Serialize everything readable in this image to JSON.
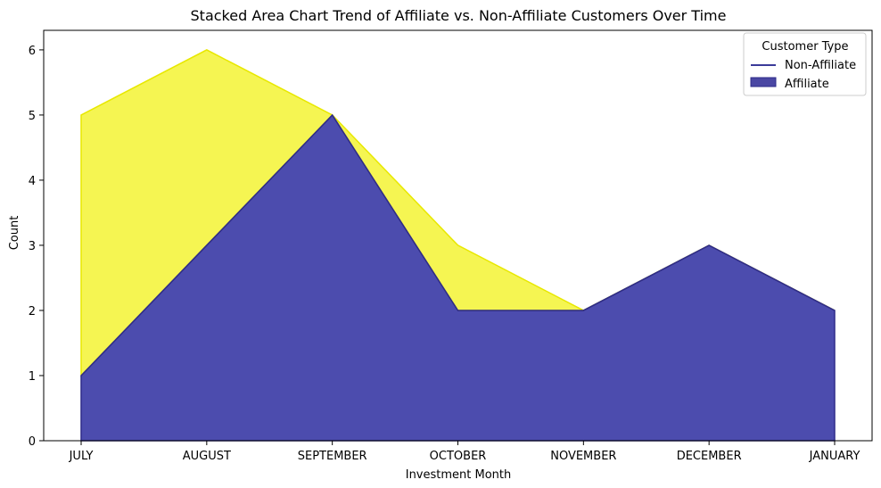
{
  "chart_data": {
    "type": "area",
    "stacked": true,
    "title": "Stacked Area Chart Trend of Affiliate vs. Non-Affiliate Customers Over Time",
    "xlabel": "Investment Month",
    "ylabel": "Count",
    "categories": [
      "JULY",
      "AUGUST",
      "SEPTEMBER",
      "OCTOBER",
      "NOVEMBER",
      "DECEMBER",
      "JANUARY"
    ],
    "ylim": [
      0,
      6.3
    ],
    "yticks": [
      "0",
      "1",
      "2",
      "3",
      "4",
      "5",
      "6"
    ],
    "grid": false,
    "legend": {
      "title": "Customer Type",
      "placement": "top-right",
      "entries": [
        "Non-Affiliate",
        "Affiliate"
      ]
    },
    "series": [
      {
        "name": "Affiliate",
        "values": [
          1,
          3,
          5,
          2,
          2,
          3,
          2
        ],
        "color": "#00008b"
      },
      {
        "name": "Non-Affiliate",
        "values": [
          4,
          3,
          0,
          1,
          0,
          0,
          0
        ],
        "color": "#f0f000"
      }
    ]
  }
}
